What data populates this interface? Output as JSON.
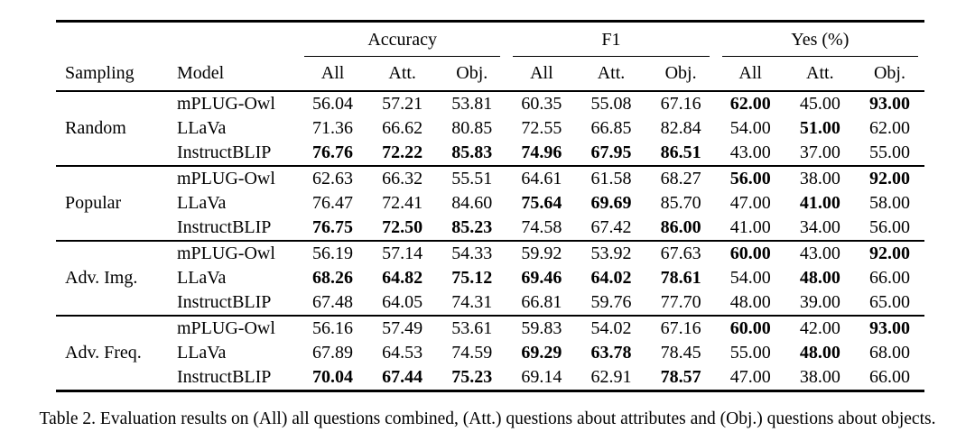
{
  "caption": "Table 2. Evaluation results on (All) all questions combined, (Att.) questions about attributes and (Obj.) questions about objects.",
  "table": {
    "stub_headers": {
      "sampling": "Sampling",
      "model": "Model"
    },
    "group_headers": [
      "Accuracy",
      "F1",
      "Yes (%)"
    ],
    "sub_headers": [
      "All",
      "Att.",
      "Obj."
    ],
    "groups": [
      {
        "sampling": "Random",
        "rows": [
          {
            "model": "mPLUG-Owl",
            "values": [
              "56.04",
              "57.21",
              "53.81",
              "60.35",
              "55.08",
              "67.16",
              "62.00",
              "45.00",
              "93.00"
            ],
            "bold": [
              6,
              8
            ]
          },
          {
            "model": "LLaVa",
            "values": [
              "71.36",
              "66.62",
              "80.85",
              "72.55",
              "66.85",
              "82.84",
              "54.00",
              "51.00",
              "62.00"
            ],
            "bold": [
              7
            ]
          },
          {
            "model": "InstructBLIP",
            "values": [
              "76.76",
              "72.22",
              "85.83",
              "74.96",
              "67.95",
              "86.51",
              "43.00",
              "37.00",
              "55.00"
            ],
            "bold": [
              0,
              1,
              2,
              3,
              4,
              5
            ]
          }
        ]
      },
      {
        "sampling": "Popular",
        "rows": [
          {
            "model": "mPLUG-Owl",
            "values": [
              "62.63",
              "66.32",
              "55.51",
              "64.61",
              "61.58",
              "68.27",
              "56.00",
              "38.00",
              "92.00"
            ],
            "bold": [
              6,
              8
            ]
          },
          {
            "model": "LLaVa",
            "values": [
              "76.47",
              "72.41",
              "84.60",
              "75.64",
              "69.69",
              "85.70",
              "47.00",
              "41.00",
              "58.00"
            ],
            "bold": [
              3,
              4,
              7
            ]
          },
          {
            "model": "InstructBLIP",
            "values": [
              "76.75",
              "72.50",
              "85.23",
              "74.58",
              "67.42",
              "86.00",
              "41.00",
              "34.00",
              "56.00"
            ],
            "bold": [
              0,
              1,
              2,
              5
            ]
          }
        ]
      },
      {
        "sampling": "Adv. Img.",
        "rows": [
          {
            "model": "mPLUG-Owl",
            "values": [
              "56.19",
              "57.14",
              "54.33",
              "59.92",
              "53.92",
              "67.63",
              "60.00",
              "43.00",
              "92.00"
            ],
            "bold": [
              6,
              8
            ]
          },
          {
            "model": "LLaVa",
            "values": [
              "68.26",
              "64.82",
              "75.12",
              "69.46",
              "64.02",
              "78.61",
              "54.00",
              "48.00",
              "66.00"
            ],
            "bold": [
              0,
              1,
              2,
              3,
              4,
              5,
              7
            ]
          },
          {
            "model": "InstructBLIP",
            "values": [
              "67.48",
              "64.05",
              "74.31",
              "66.81",
              "59.76",
              "77.70",
              "48.00",
              "39.00",
              "65.00"
            ],
            "bold": []
          }
        ]
      },
      {
        "sampling": "Adv. Freq.",
        "rows": [
          {
            "model": "mPLUG-Owl",
            "values": [
              "56.16",
              "57.49",
              "53.61",
              "59.83",
              "54.02",
              "67.16",
              "60.00",
              "42.00",
              "93.00"
            ],
            "bold": [
              6,
              8
            ]
          },
          {
            "model": "LLaVa",
            "values": [
              "67.89",
              "64.53",
              "74.59",
              "69.29",
              "63.78",
              "78.45",
              "55.00",
              "48.00",
              "68.00"
            ],
            "bold": [
              3,
              4,
              7
            ]
          },
          {
            "model": "InstructBLIP",
            "values": [
              "70.04",
              "67.44",
              "75.23",
              "69.14",
              "62.91",
              "78.57",
              "47.00",
              "38.00",
              "66.00"
            ],
            "bold": [
              0,
              1,
              2,
              5
            ]
          }
        ]
      }
    ]
  },
  "colors": {
    "text": "#000000",
    "background": "#ffffff",
    "rule": "#000000"
  }
}
